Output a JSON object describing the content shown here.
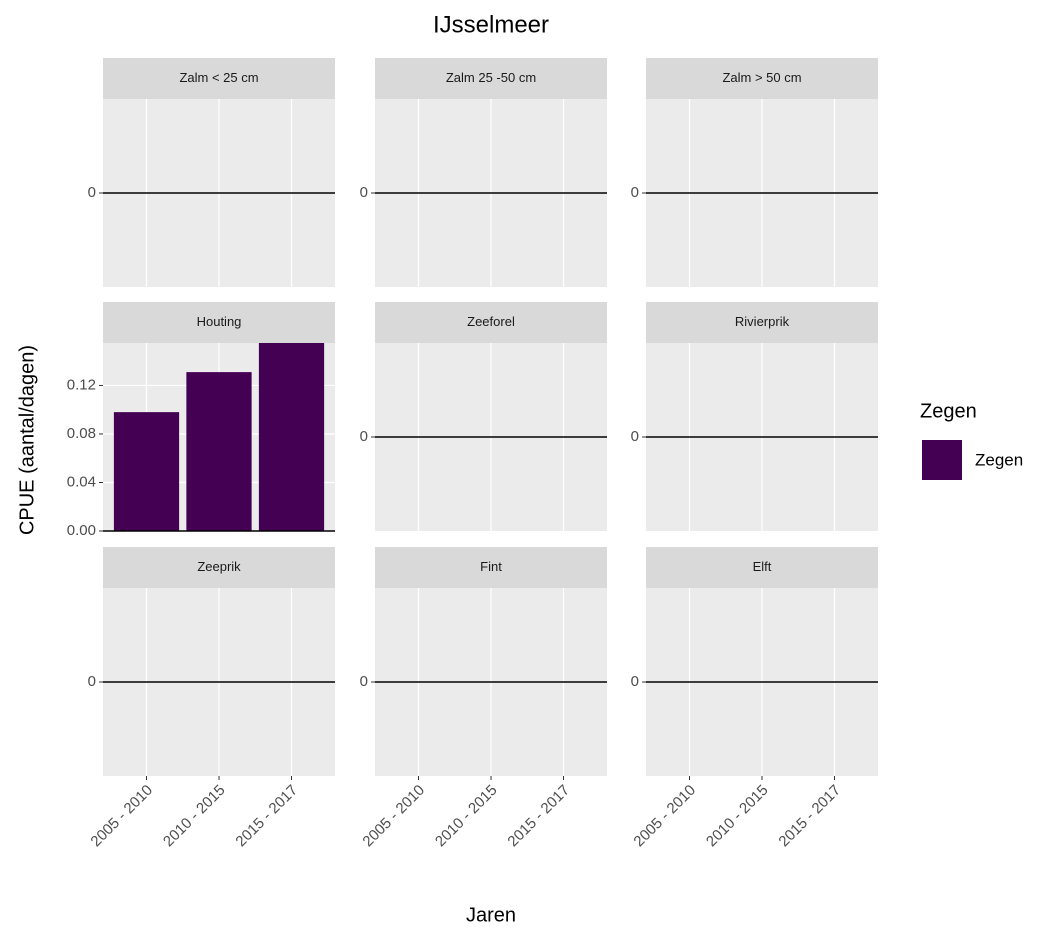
{
  "title": "IJsselmeer",
  "x_label": "Jaren",
  "y_label": "CPUE (aantal/dagen)",
  "legend": {
    "title": "Zegen",
    "position": "right"
  },
  "chart_data": [
    {
      "type": "bar",
      "title": "Zalm < 25 cm",
      "categories": [
        "2005 - 2010",
        "2010 - 2015",
        "2015 - 2017"
      ],
      "series": [
        {
          "name": "Zegen",
          "color": "#440154",
          "values": [
            0,
            0,
            0
          ]
        }
      ],
      "ylim": [
        -0.05,
        0.05
      ],
      "yticks": [
        0
      ],
      "grid": true
    },
    {
      "type": "bar",
      "title": "Zalm 25 -50 cm",
      "categories": [
        "2005 - 2010",
        "2010 - 2015",
        "2015 - 2017"
      ],
      "series": [
        {
          "name": "Zegen",
          "color": "#440154",
          "values": [
            0,
            0,
            0
          ]
        }
      ],
      "ylim": [
        -0.05,
        0.05
      ],
      "yticks": [
        0
      ],
      "grid": true
    },
    {
      "type": "bar",
      "title": "Zalm > 50 cm",
      "categories": [
        "2005 - 2010",
        "2010 - 2015",
        "2015 - 2017"
      ],
      "series": [
        {
          "name": "Zegen",
          "color": "#440154",
          "values": [
            0,
            0,
            0
          ]
        }
      ],
      "ylim": [
        -0.05,
        0.05
      ],
      "yticks": [
        0
      ],
      "grid": true
    },
    {
      "type": "bar",
      "title": "Houting",
      "categories": [
        "2005 - 2010",
        "2010 - 2015",
        "2015 - 2017"
      ],
      "series": [
        {
          "name": "Zegen",
          "color": "#440154",
          "values": [
            0.098,
            0.131,
            0.155
          ]
        }
      ],
      "ylim": [
        0,
        0.155
      ],
      "yticks": [
        {
          "value": 0,
          "label": "0.00"
        },
        {
          "value": 0.04,
          "label": "0.04"
        },
        {
          "value": 0.08,
          "label": "0.08"
        },
        {
          "value": 0.12,
          "label": "0.12"
        }
      ],
      "grid": true
    },
    {
      "type": "bar",
      "title": "Zeeforel",
      "categories": [
        "2005 - 2010",
        "2010 - 2015",
        "2015 - 2017"
      ],
      "series": [
        {
          "name": "Zegen",
          "color": "#440154",
          "values": [
            0,
            0,
            0
          ]
        }
      ],
      "ylim": [
        -0.05,
        0.05
      ],
      "yticks": [
        0
      ],
      "grid": true
    },
    {
      "type": "bar",
      "title": "Rivierprik",
      "categories": [
        "2005 - 2010",
        "2010 - 2015",
        "2015 - 2017"
      ],
      "series": [
        {
          "name": "Zegen",
          "color": "#440154",
          "values": [
            0,
            0,
            0
          ]
        }
      ],
      "ylim": [
        -0.05,
        0.05
      ],
      "yticks": [
        0
      ],
      "grid": true
    },
    {
      "type": "bar",
      "title": "Zeeprik",
      "categories": [
        "2005 - 2010",
        "2010 - 2015",
        "2015 - 2017"
      ],
      "series": [
        {
          "name": "Zegen",
          "color": "#440154",
          "values": [
            0,
            0,
            0
          ]
        }
      ],
      "ylim": [
        -0.05,
        0.05
      ],
      "yticks": [
        0
      ],
      "grid": true
    },
    {
      "type": "bar",
      "title": "Fint",
      "categories": [
        "2005 - 2010",
        "2010 - 2015",
        "2015 - 2017"
      ],
      "series": [
        {
          "name": "Zegen",
          "color": "#440154",
          "values": [
            0,
            0,
            0
          ]
        }
      ],
      "ylim": [
        -0.05,
        0.05
      ],
      "yticks": [
        0
      ],
      "grid": true
    },
    {
      "type": "bar",
      "title": "Elft",
      "categories": [
        "2005 - 2010",
        "2010 - 2015",
        "2015 - 2017"
      ],
      "series": [
        {
          "name": "Zegen",
          "color": "#440154",
          "values": [
            0,
            0,
            0
          ]
        }
      ],
      "ylim": [
        -0.05,
        0.05
      ],
      "yticks": [
        0
      ],
      "grid": true
    }
  ]
}
